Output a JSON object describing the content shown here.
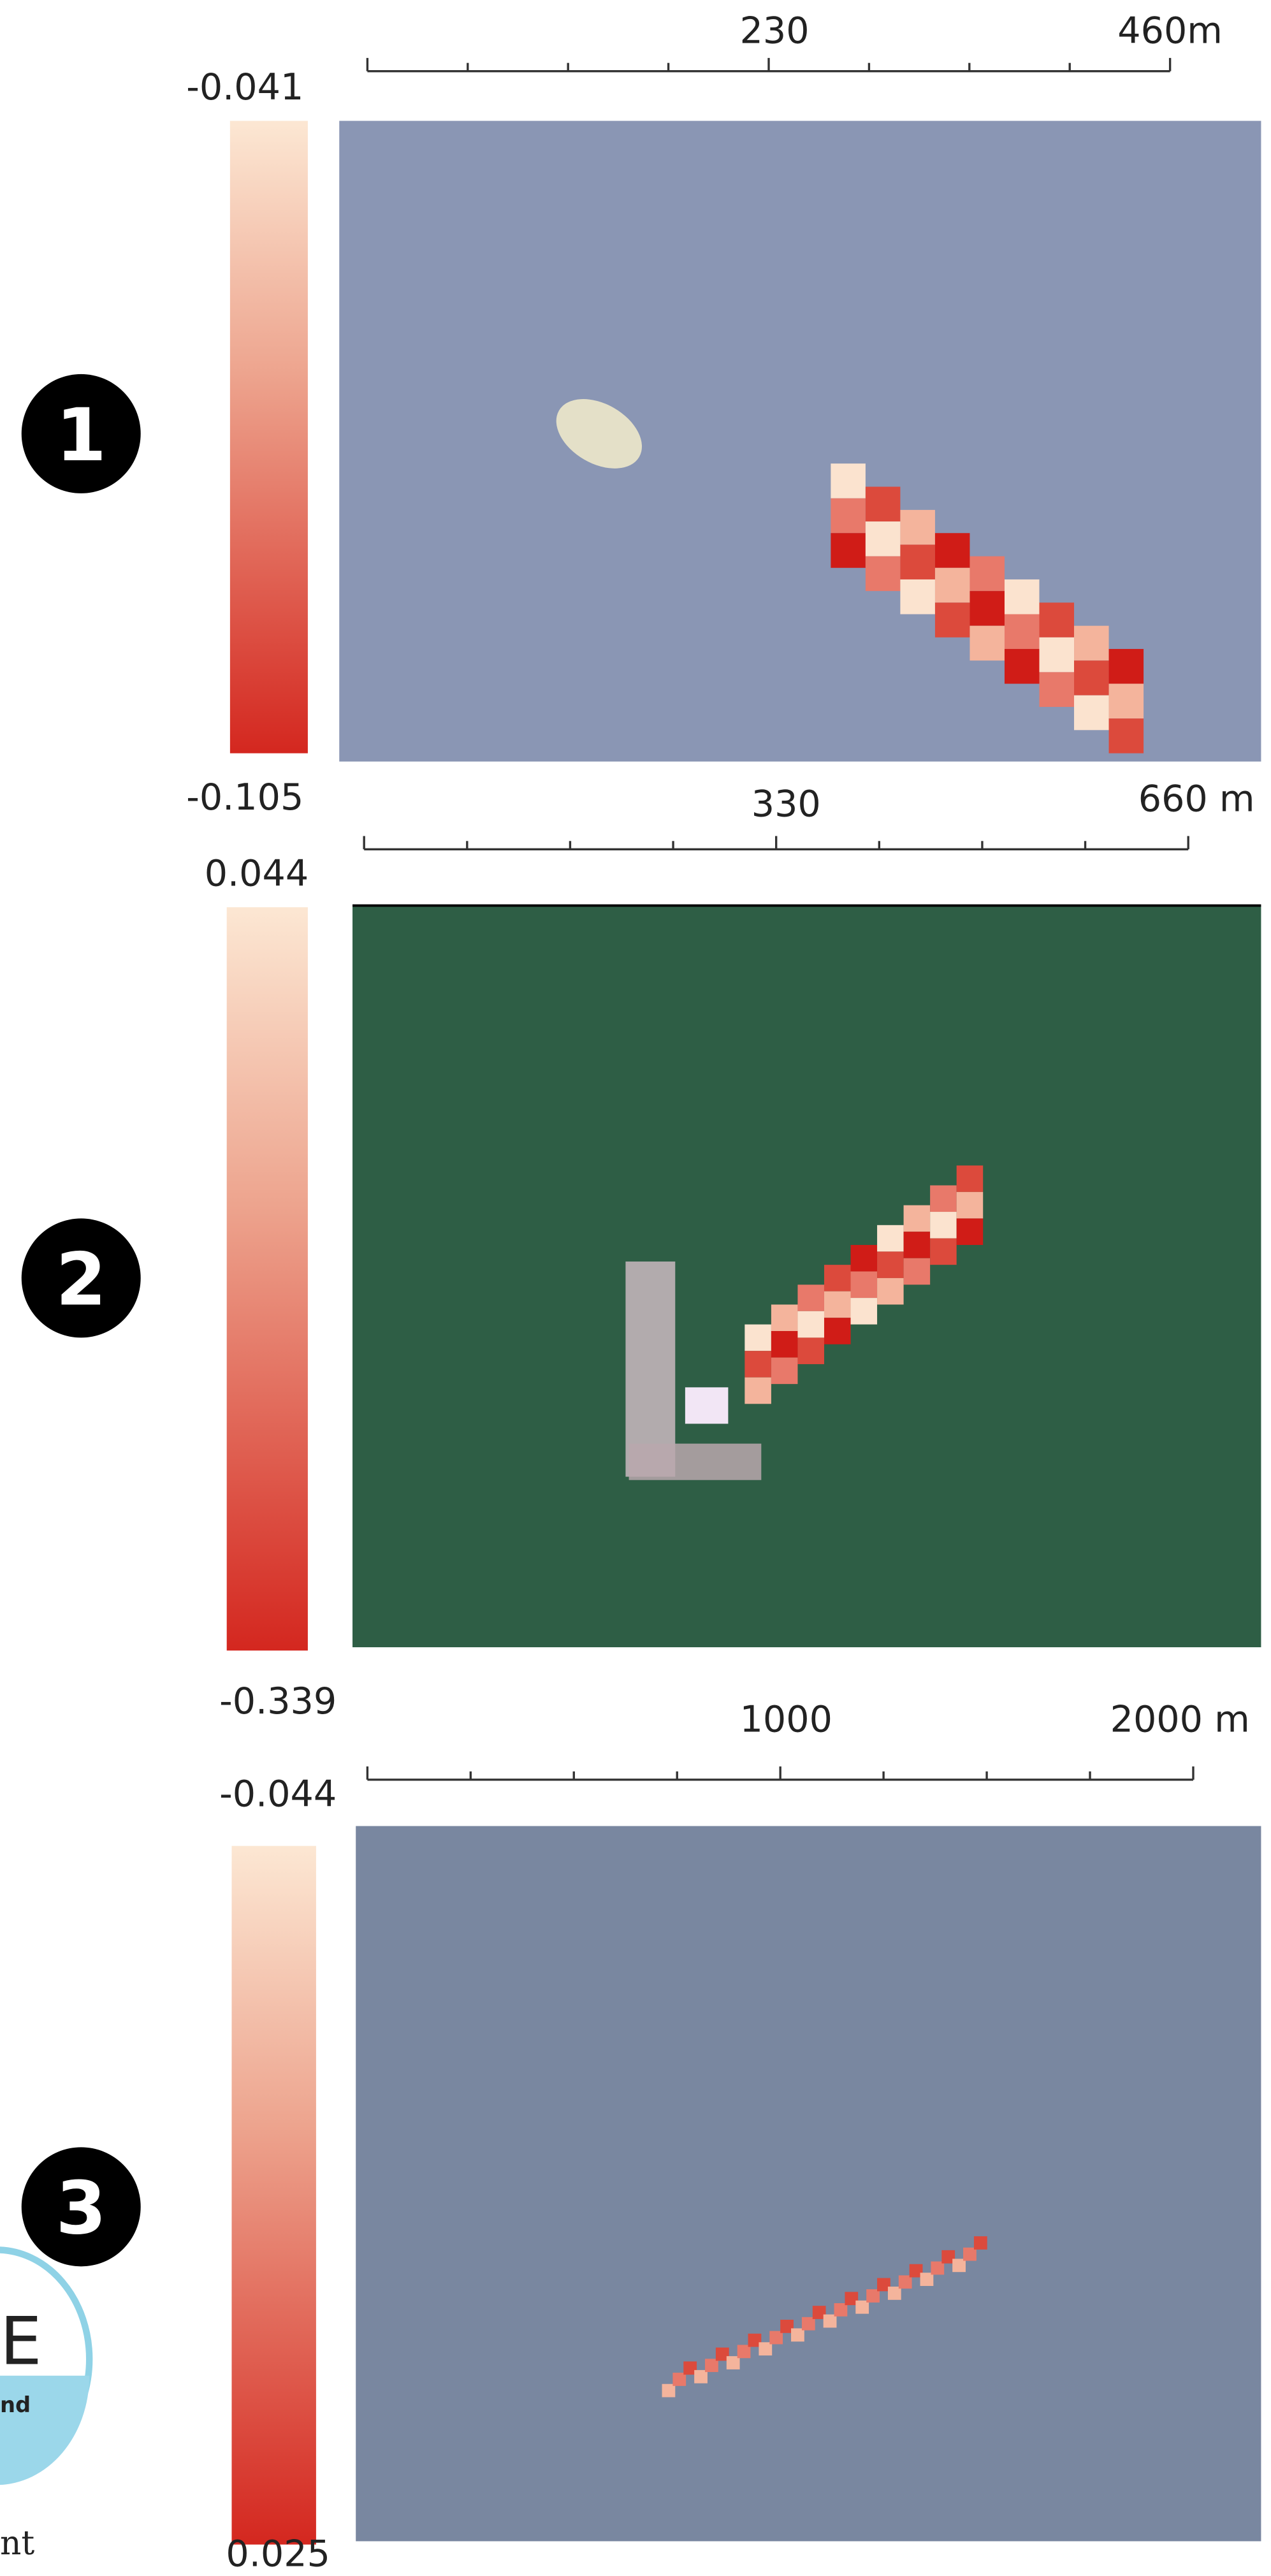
{
  "panels": [
    {
      "number": "1",
      "colorbar": {
        "top_label": "-0.041",
        "bottom_label": "-0.105"
      },
      "scale_bar": {
        "mid_label": "230",
        "end_label": "460m"
      }
    },
    {
      "number": "2",
      "colorbar": {
        "top_label": "0.044",
        "bottom_label": "-0.339"
      },
      "scale_bar": {
        "mid_label": "330",
        "end_label": "660 m"
      }
    },
    {
      "number": "3",
      "colorbar": {
        "top_label": "-0.044",
        "bottom_label": "0.025"
      },
      "scale_bar": {
        "mid_label": "1000",
        "end_label": "2000 m"
      }
    }
  ],
  "logo": {
    "letter": "E",
    "subtext": "nd"
  },
  "footer_fragment": "nt"
}
